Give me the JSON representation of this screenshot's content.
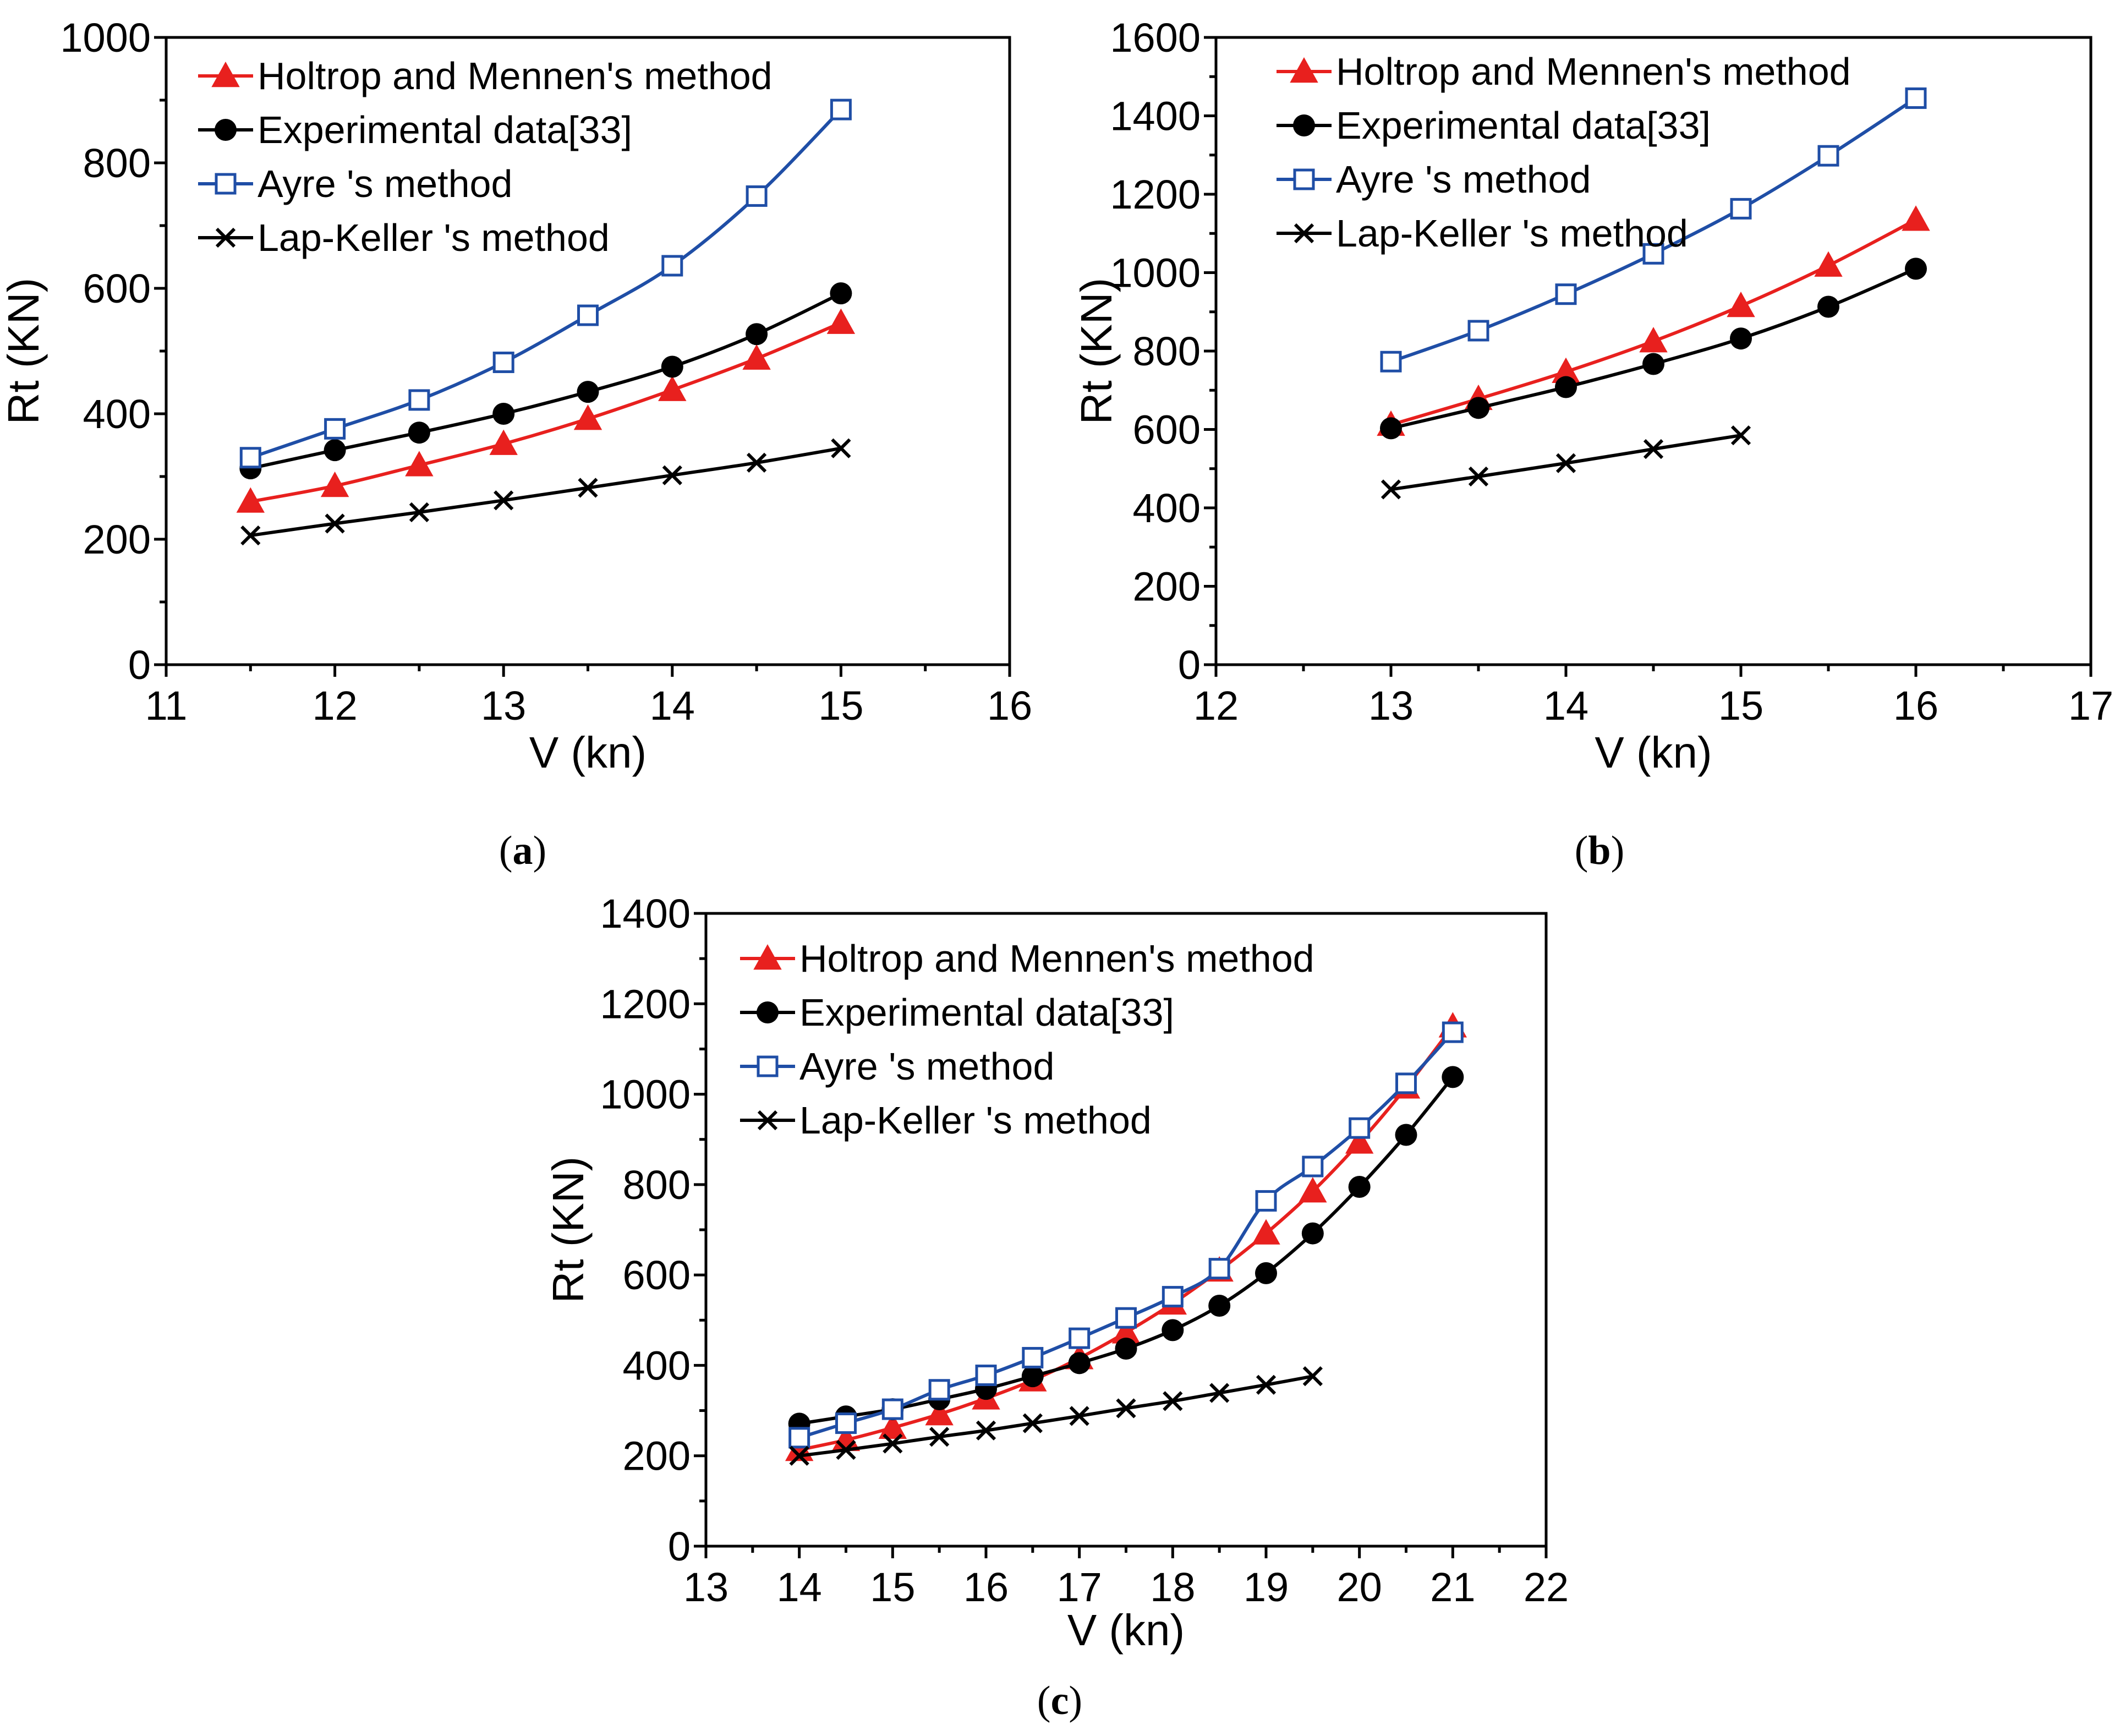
{
  "colors": {
    "holtrop": "#e8201e",
    "experimental": "#000000",
    "ayre": "#1f4ea6",
    "lap": "#000000"
  },
  "chart_data": [
    {
      "panel": "a",
      "type": "line",
      "xlabel": "V (kn)",
      "ylabel": "Rt (KN)",
      "xlim": [
        11,
        16
      ],
      "ylim": [
        0,
        1000
      ],
      "xticks": [
        "11",
        "12",
        "13",
        "14",
        "15",
        "16"
      ],
      "yticks": [
        "0",
        "200",
        "400",
        "600",
        "800",
        "1000"
      ],
      "legend": "top-left",
      "series": [
        {
          "name": "Holtrop and Mennen's method",
          "marker": "triangle",
          "color": "#e8201e",
          "x": [
            11.5,
            12,
            12.5,
            13,
            13.5,
            14,
            14.5,
            15
          ],
          "y": [
            260,
            285,
            318,
            352,
            392,
            438,
            488,
            545
          ]
        },
        {
          "name": "Experimental data[33]",
          "marker": "circle",
          "color": "#000000",
          "x": [
            11.5,
            12,
            12.5,
            13,
            13.5,
            14,
            14.5,
            15
          ],
          "y": [
            313,
            342,
            370,
            400,
            435,
            475,
            527,
            592
          ]
        },
        {
          "name": "Ayre 's method",
          "marker": "square",
          "color": "#1f4ea6",
          "x": [
            11.5,
            12,
            12.5,
            13,
            13.5,
            14,
            14.5,
            15
          ],
          "y": [
            330,
            376,
            422,
            482,
            557,
            636,
            747,
            885
          ]
        },
        {
          "name": "Lap-Keller 's method",
          "marker": "x",
          "color": "#000000",
          "x": [
            11.5,
            12,
            12.5,
            13,
            13.5,
            14,
            14.5,
            15
          ],
          "y": [
            206,
            225,
            243,
            262,
            282,
            302,
            322,
            345
          ]
        }
      ]
    },
    {
      "panel": "b",
      "type": "line",
      "xlabel": "V (kn)",
      "ylabel": "Rt (KN)",
      "xlim": [
        12,
        17
      ],
      "ylim": [
        0,
        1600
      ],
      "xticks": [
        "12",
        "13",
        "14",
        "15",
        "16",
        "17"
      ],
      "yticks": [
        "0",
        "200",
        "400",
        "600",
        "800",
        "1000",
        "1200",
        "1400",
        "1600"
      ],
      "legend": "top-left",
      "series": [
        {
          "name": "Holtrop and Mennen's method",
          "marker": "triangle",
          "color": "#e8201e",
          "x": [
            13,
            13.5,
            14,
            14.5,
            15,
            15.5,
            16
          ],
          "y": [
            612,
            678,
            747,
            825,
            915,
            1018,
            1135
          ]
        },
        {
          "name": "Experimental data[33]",
          "marker": "circle",
          "color": "#000000",
          "x": [
            13,
            13.5,
            14,
            14.5,
            15,
            15.5,
            16
          ],
          "y": [
            603,
            655,
            708,
            767,
            832,
            913,
            1010
          ]
        },
        {
          "name": "Ayre 's method",
          "marker": "square",
          "color": "#1f4ea6",
          "x": [
            13,
            13.5,
            14,
            14.5,
            15,
            15.5,
            16
          ],
          "y": [
            773,
            852,
            945,
            1048,
            1163,
            1298,
            1445
          ]
        },
        {
          "name": "Lap-Keller 's method",
          "marker": "x",
          "color": "#000000",
          "x": [
            13,
            13.5,
            14,
            14.5,
            15
          ],
          "y": [
            447,
            480,
            514,
            550,
            585
          ]
        }
      ]
    },
    {
      "panel": "c",
      "type": "line",
      "xlabel": "V (kn)",
      "ylabel": "Rt (KN)",
      "xlim": [
        13,
        22
      ],
      "ylim": [
        0,
        1400
      ],
      "xticks": [
        "13",
        "14",
        "15",
        "16",
        "17",
        "18",
        "19",
        "20",
        "21",
        "22"
      ],
      "yticks": [
        "0",
        "200",
        "400",
        "600",
        "800",
        "1000",
        "1200",
        "1400"
      ],
      "legend": "top-left",
      "series": [
        {
          "name": "Holtrop and Mennen's method",
          "marker": "triangle",
          "color": "#e8201e",
          "x": [
            14,
            14.5,
            15,
            15.5,
            16,
            16.5,
            17,
            17.5,
            18,
            18.5,
            19,
            19.5,
            20,
            20.5,
            21
          ],
          "y": [
            213,
            235,
            262,
            292,
            327,
            367,
            416,
            473,
            537,
            610,
            692,
            785,
            893,
            1015,
            1150
          ]
        },
        {
          "name": "Experimental data[33]",
          "marker": "circle",
          "color": "#000000",
          "x": [
            14,
            14.5,
            15,
            15.5,
            16,
            16.5,
            17,
            17.5,
            18,
            18.5,
            19,
            19.5,
            20,
            20.5,
            21
          ],
          "y": [
            271,
            287,
            303,
            325,
            348,
            376,
            405,
            437,
            478,
            532,
            604,
            692,
            795,
            910,
            1038
          ]
        },
        {
          "name": "Ayre 's method",
          "marker": "square",
          "color": "#1f4ea6",
          "x": [
            14,
            14.5,
            15,
            15.5,
            16,
            16.5,
            17,
            17.5,
            18,
            18.5,
            19,
            19.5,
            20,
            20.5,
            21
          ],
          "y": [
            240,
            272,
            303,
            346,
            378,
            417,
            460,
            505,
            552,
            614,
            764,
            840,
            925,
            1024,
            1137
          ]
        },
        {
          "name": "Lap-Keller 's method",
          "marker": "x",
          "color": "#000000",
          "x": [
            14,
            14.5,
            15,
            15.5,
            16,
            16.5,
            17,
            17.5,
            18,
            18.5,
            19,
            19.5
          ],
          "y": [
            200,
            213,
            227,
            242,
            256,
            272,
            288,
            305,
            321,
            339,
            357,
            376
          ]
        }
      ]
    }
  ],
  "captions": {
    "a": "a",
    "b": "b",
    "c": "c"
  }
}
